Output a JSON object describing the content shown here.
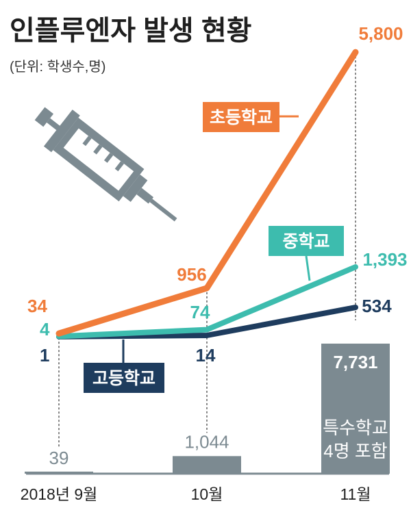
{
  "chart_data": {
    "type": "line",
    "title": "인플루엔자 발생 현황",
    "subtitle": "(단위: 학생수,명)",
    "categories": [
      "2018년 9월",
      "10월",
      "11월"
    ],
    "series": [
      {
        "name": "초등학교",
        "values": [
          34,
          956,
          5800
        ],
        "labels": [
          "34",
          "956",
          "5,800"
        ],
        "color": "#f07c3a"
      },
      {
        "name": "중학교",
        "values": [
          4,
          74,
          1393
        ],
        "labels": [
          "4",
          "74",
          "1,393"
        ],
        "color": "#3dbcae"
      },
      {
        "name": "고등학교",
        "values": [
          1,
          14,
          534
        ],
        "labels": [
          "1",
          "14",
          "534"
        ],
        "color": "#1e3c5e"
      }
    ],
    "special_school": {
      "name": "특수학교",
      "values": [
        39,
        1044,
        7731
      ],
      "labels": [
        "39",
        "1,044",
        "7,731"
      ],
      "note": [
        "특수학교",
        "4명 포함"
      ],
      "color": "#7c8a91"
    },
    "grid": false,
    "legend": "inline-badges"
  },
  "icon": "syringe-icon"
}
